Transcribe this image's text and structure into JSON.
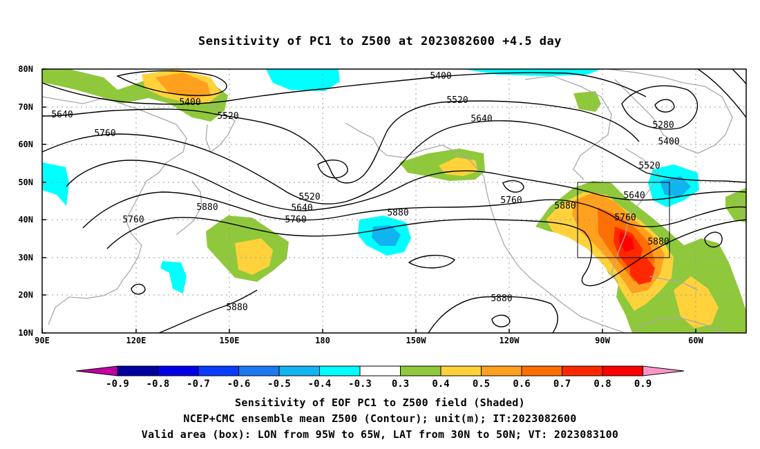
{
  "title": "Sensitivity of PC1 to Z500 at 2023082600 +4.5 day",
  "lat_labels": [
    "80N",
    "70N",
    "60N",
    "50N",
    "40N",
    "30N",
    "20N",
    "10N"
  ],
  "lon_labels": [
    "90E",
    "120E",
    "150E",
    "180",
    "150W",
    "120W",
    "90W",
    "60W"
  ],
  "contour_labels": [
    {
      "text": "5400"
    },
    {
      "text": "5400"
    },
    {
      "text": "5400"
    },
    {
      "text": "5520"
    },
    {
      "text": "5520"
    },
    {
      "text": "5520"
    },
    {
      "text": "5520"
    },
    {
      "text": "5640"
    },
    {
      "text": "5640"
    },
    {
      "text": "5640"
    },
    {
      "text": "5640"
    },
    {
      "text": "5760"
    },
    {
      "text": "5760"
    },
    {
      "text": "5760"
    },
    {
      "text": "5760"
    },
    {
      "text": "5760"
    },
    {
      "text": "5880"
    },
    {
      "text": "5880"
    },
    {
      "text": "5880"
    },
    {
      "text": "5880"
    },
    {
      "text": "5880"
    },
    {
      "text": "5880"
    },
    {
      "text": "5280"
    }
  ],
  "colorbar": {
    "labels": [
      "-0.9",
      "-0.8",
      "-0.7",
      "-0.6",
      "-0.5",
      "-0.4",
      "-0.3",
      "0.3",
      "0.4",
      "0.5",
      "0.6",
      "0.7",
      "0.8",
      "0.9"
    ],
    "colors": [
      "#0000a0",
      "#0000e6",
      "#0a3cff",
      "#1e78f0",
      "#10b4f0",
      "#00ffff",
      "#ffffff",
      "#90c83c",
      "#ffd23c",
      "#ffa01e",
      "#ff6e00",
      "#ff2800",
      "#ff0000"
    ],
    "left_tip": "#c000a0",
    "right_tip": "#ff96c8"
  },
  "captions": {
    "line1": "Sensitivity of EOF PC1 to Z500 field (Shaded)",
    "line2": "NCEP+CMC ensemble mean Z500 (Contour); unit(m); IT:2023082600",
    "line3": "Valid area (box): LON from 95W to 65W, LAT from 30N to 50N; VT: 2023083100"
  }
}
